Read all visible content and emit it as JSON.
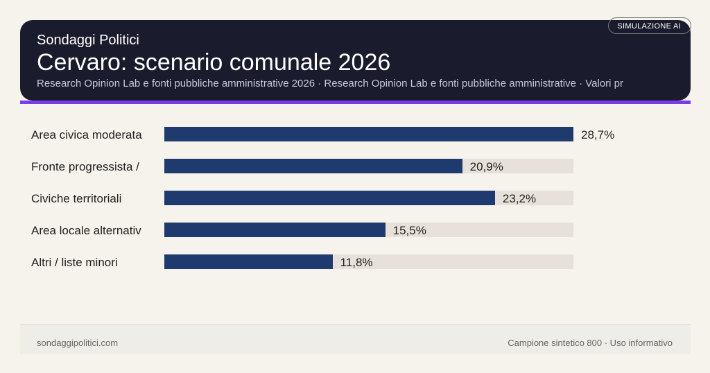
{
  "header": {
    "brand": "Sondaggi Politici",
    "title": "Cervaro: scenario comunale 2026",
    "subtitle": "Research Opinion Lab e fonti pubbliche amministrative 2026 · Research Opinion Lab e fonti pubbliche amministrative · Valori pr",
    "badge": "SIMULAZIONE AI"
  },
  "colors": {
    "bar": "#1f3a6e",
    "track": "#e7e1da",
    "accent": "#7c3aed",
    "header_bg": "#1b1b2e"
  },
  "chart_data": {
    "type": "bar",
    "orientation": "horizontal",
    "categories": [
      "Area civica moderata",
      "Fronte progressista /",
      "Civiche territoriali",
      "Area locale alternativ",
      "Altri / liste minori"
    ],
    "values": [
      28.7,
      20.9,
      23.2,
      15.5,
      11.8
    ],
    "value_labels": [
      "28,7%",
      "20,9%",
      "23,2%",
      "15,5%",
      "11,8%"
    ],
    "xlim": [
      0,
      28.7
    ],
    "grid": false
  },
  "footer": {
    "site": "sondaggipolitici.com",
    "note": "Campione sintetico 800 · Uso informativo"
  }
}
